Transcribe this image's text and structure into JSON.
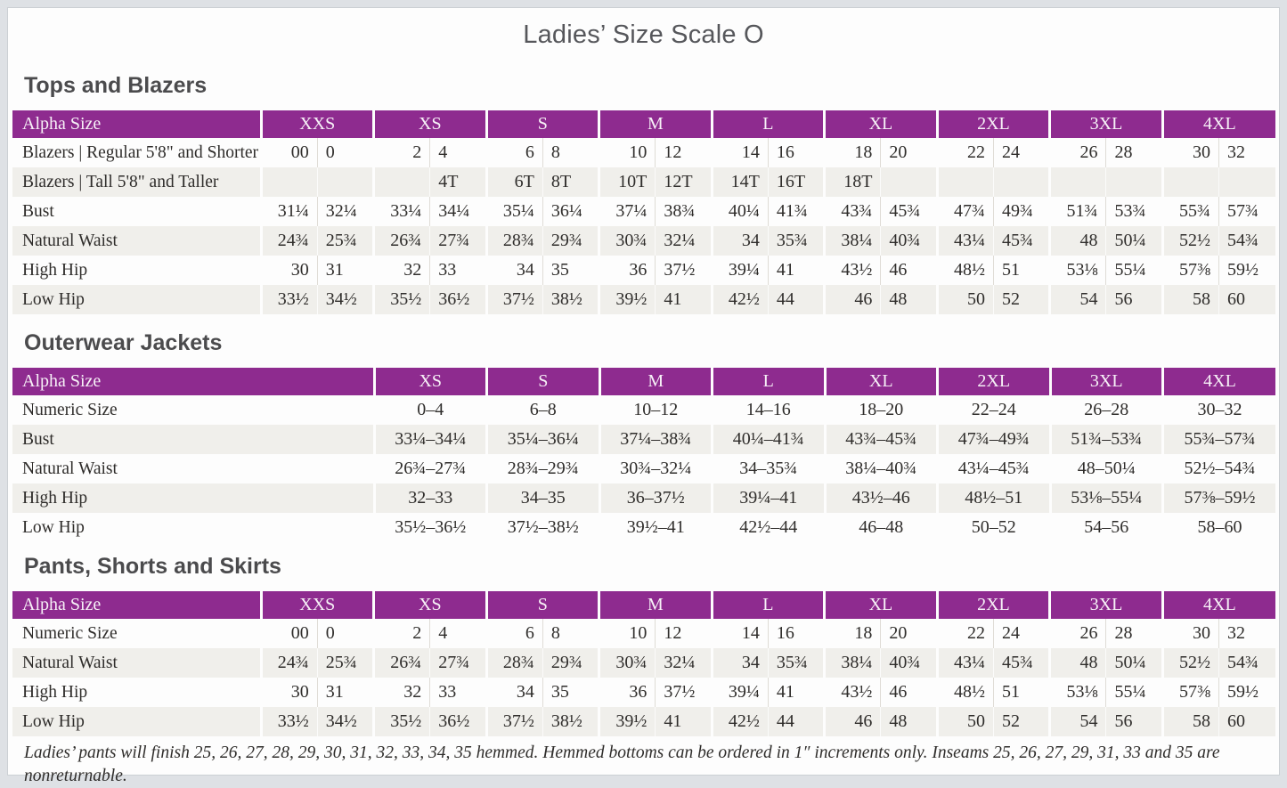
{
  "page": {
    "title": "Ladies’ Size Scale O",
    "footnote": "Ladies’ pants will finish 25, 26, 27, 28, 29, 30, 31, 32, 33, 34, 35 hemmed. Hemmed bottoms can be ordered in 1″ increments only. Inseams 25, 26, 27, 29, 31, 33 and 35 are nonreturnable."
  },
  "colors": {
    "header_purple": "#8e2b8f",
    "stripe_gray": "#f0efeb",
    "title_gray": "#56575b"
  },
  "tables": [
    {
      "id": "tops-and-blazers",
      "section_title": "Tops and Blazers",
      "header_label": "Alpha Size",
      "split_columns": true,
      "columns": [
        "XXS",
        "XS",
        "S",
        "M",
        "L",
        "XL",
        "2XL",
        "3XL",
        "4XL"
      ],
      "rows": [
        {
          "label": "Blazers | Regular 5'8\" and Shorter",
          "values": [
            [
              "00",
              "0"
            ],
            [
              "2",
              "4"
            ],
            [
              "6",
              "8"
            ],
            [
              "10",
              "12"
            ],
            [
              "14",
              "16"
            ],
            [
              "18",
              "20"
            ],
            [
              "22",
              "24"
            ],
            [
              "26",
              "28"
            ],
            [
              "30",
              "32"
            ]
          ]
        },
        {
          "label": "Blazers | Tall 5'8\" and Taller",
          "values": [
            [
              "",
              ""
            ],
            [
              "",
              "4T"
            ],
            [
              "6T",
              "8T"
            ],
            [
              "10T",
              "12T"
            ],
            [
              "14T",
              "16T"
            ],
            [
              "18T",
              ""
            ],
            [
              "",
              ""
            ],
            [
              "",
              ""
            ],
            [
              "",
              ""
            ]
          ]
        },
        {
          "label": "Bust",
          "values": [
            [
              "31¼",
              "32¼"
            ],
            [
              "33¼",
              "34¼"
            ],
            [
              "35¼",
              "36¼"
            ],
            [
              "37¼",
              "38¾"
            ],
            [
              "40¼",
              "41¾"
            ],
            [
              "43¾",
              "45¾"
            ],
            [
              "47¾",
              "49¾"
            ],
            [
              "51¾",
              "53¾"
            ],
            [
              "55¾",
              "57¾"
            ]
          ]
        },
        {
          "label": "Natural Waist",
          "values": [
            [
              "24¾",
              "25¾"
            ],
            [
              "26¾",
              "27¾"
            ],
            [
              "28¾",
              "29¾"
            ],
            [
              "30¾",
              "32¼"
            ],
            [
              "34",
              "35¾"
            ],
            [
              "38¼",
              "40¾"
            ],
            [
              "43¼",
              "45¾"
            ],
            [
              "48",
              "50¼"
            ],
            [
              "52½",
              "54¾"
            ]
          ]
        },
        {
          "label": "High Hip",
          "values": [
            [
              "30",
              "31"
            ],
            [
              "32",
              "33"
            ],
            [
              "34",
              "35"
            ],
            [
              "36",
              "37½"
            ],
            [
              "39¼",
              "41"
            ],
            [
              "43½",
              "46"
            ],
            [
              "48½",
              "51"
            ],
            [
              "53⅛",
              "55¼"
            ],
            [
              "57⅜",
              "59½"
            ]
          ]
        },
        {
          "label": "Low Hip",
          "values": [
            [
              "33½",
              "34½"
            ],
            [
              "35½",
              "36½"
            ],
            [
              "37½",
              "38½"
            ],
            [
              "39½",
              "41"
            ],
            [
              "42½",
              "44"
            ],
            [
              "46",
              "48"
            ],
            [
              "50",
              "52"
            ],
            [
              "54",
              "56"
            ],
            [
              "58",
              "60"
            ]
          ]
        }
      ]
    },
    {
      "id": "outerwear-jackets",
      "section_title": "Outerwear Jackets",
      "header_label": "Alpha Size",
      "split_columns": false,
      "columns": [
        "XS",
        "S",
        "M",
        "L",
        "XL",
        "2XL",
        "3XL",
        "4XL"
      ],
      "rows": [
        {
          "label": "Numeric Size",
          "values": [
            "0–4",
            "6–8",
            "10–12",
            "14–16",
            "18–20",
            "22–24",
            "26–28",
            "30–32"
          ]
        },
        {
          "label": "Bust",
          "values": [
            "33¼–34¼",
            "35¼–36¼",
            "37¼–38¾",
            "40¼–41¾",
            "43¾–45¾",
            "47¾–49¾",
            "51¾–53¾",
            "55¾–57¾"
          ]
        },
        {
          "label": "Natural Waist",
          "values": [
            "26¾–27¾",
            "28¾–29¾",
            "30¾–32¼",
            "34–35¾",
            "38¼–40¾",
            "43¼–45¾",
            "48–50¼",
            "52½–54¾"
          ]
        },
        {
          "label": "High Hip",
          "values": [
            "32–33",
            "34–35",
            "36–37½",
            "39¼–41",
            "43½–46",
            "48½–51",
            "53⅛–55¼",
            "57⅜–59½"
          ]
        },
        {
          "label": "Low Hip",
          "values": [
            "35½–36½",
            "37½–38½",
            "39½–41",
            "42½–44",
            "46–48",
            "50–52",
            "54–56",
            "58–60"
          ]
        }
      ]
    },
    {
      "id": "pants-shorts-skirts",
      "section_title": "Pants, Shorts and Skirts",
      "header_label": "Alpha Size",
      "split_columns": true,
      "columns": [
        "XXS",
        "XS",
        "S",
        "M",
        "L",
        "XL",
        "2XL",
        "3XL",
        "4XL"
      ],
      "rows": [
        {
          "label": "Numeric Size",
          "values": [
            [
              "00",
              "0"
            ],
            [
              "2",
              "4"
            ],
            [
              "6",
              "8"
            ],
            [
              "10",
              "12"
            ],
            [
              "14",
              "16"
            ],
            [
              "18",
              "20"
            ],
            [
              "22",
              "24"
            ],
            [
              "26",
              "28"
            ],
            [
              "30",
              "32"
            ]
          ]
        },
        {
          "label": "Natural Waist",
          "values": [
            [
              "24¾",
              "25¾"
            ],
            [
              "26¾",
              "27¾"
            ],
            [
              "28¾",
              "29¾"
            ],
            [
              "30¾",
              "32¼"
            ],
            [
              "34",
              "35¾"
            ],
            [
              "38¼",
              "40¾"
            ],
            [
              "43¼",
              "45¾"
            ],
            [
              "48",
              "50¼"
            ],
            [
              "52½",
              "54¾"
            ]
          ]
        },
        {
          "label": "High Hip",
          "values": [
            [
              "30",
              "31"
            ],
            [
              "32",
              "33"
            ],
            [
              "34",
              "35"
            ],
            [
              "36",
              "37½"
            ],
            [
              "39¼",
              "41"
            ],
            [
              "43½",
              "46"
            ],
            [
              "48½",
              "51"
            ],
            [
              "53⅛",
              "55¼"
            ],
            [
              "57⅜",
              "59½"
            ]
          ]
        },
        {
          "label": "Low Hip",
          "values": [
            [
              "33½",
              "34½"
            ],
            [
              "35½",
              "36½"
            ],
            [
              "37½",
              "38½"
            ],
            [
              "39½",
              "41"
            ],
            [
              "42½",
              "44"
            ],
            [
              "46",
              "48"
            ],
            [
              "50",
              "52"
            ],
            [
              "54",
              "56"
            ],
            [
              "58",
              "60"
            ]
          ]
        }
      ]
    }
  ]
}
